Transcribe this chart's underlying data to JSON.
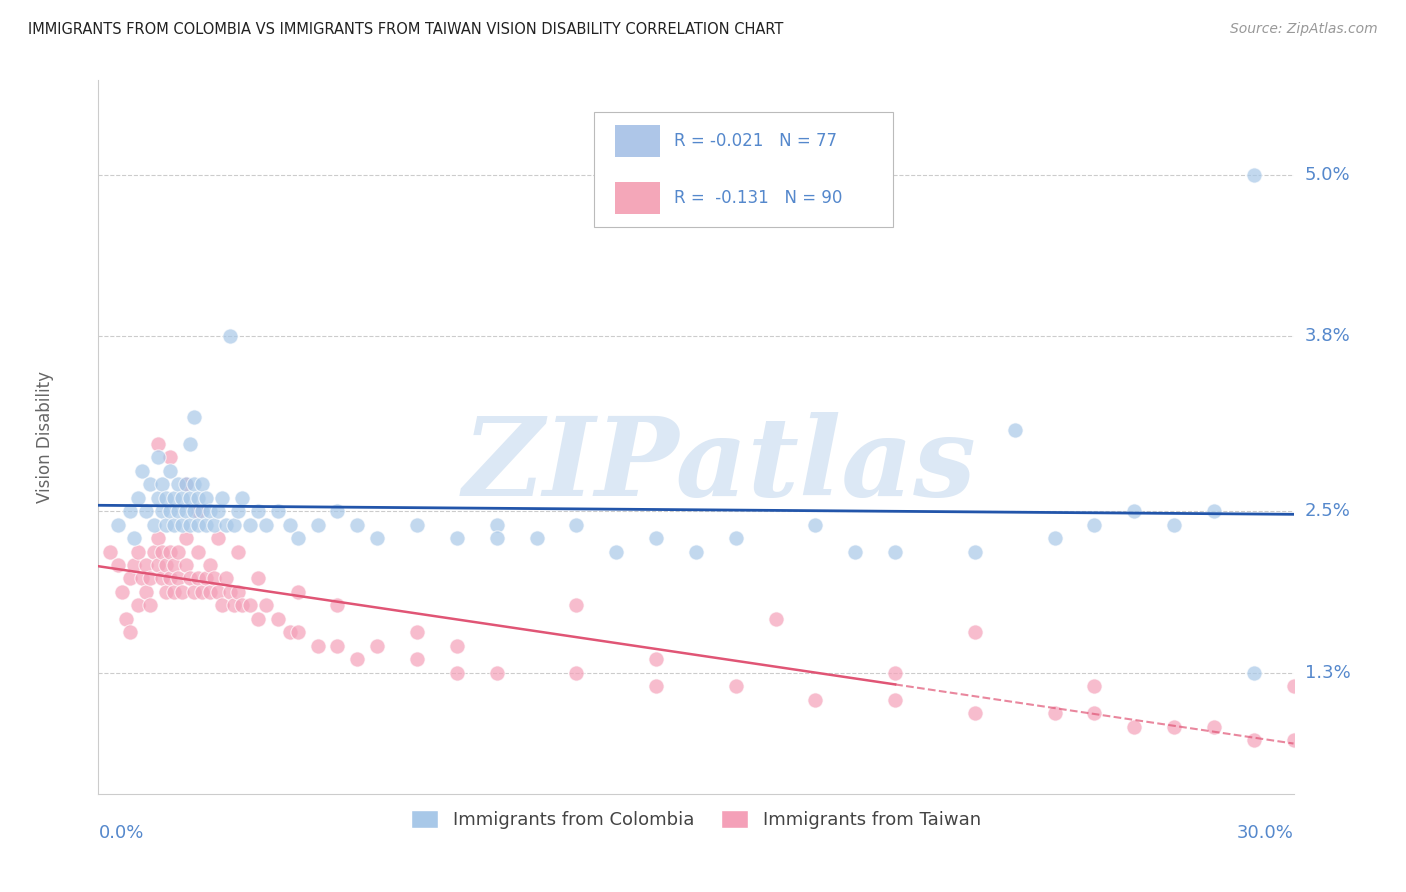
{
  "title": "IMMIGRANTS FROM COLOMBIA VS IMMIGRANTS FROM TAIWAN VISION DISABILITY CORRELATION CHART",
  "source": "Source: ZipAtlas.com",
  "xlabel_ticks": [
    "0.0%",
    "30.0%"
  ],
  "ylabel_ticks_labels": [
    "1.3%",
    "2.5%",
    "3.8%",
    "5.0%"
  ],
  "ylabel_ticks_values": [
    0.013,
    0.025,
    0.038,
    0.05
  ],
  "ylabel": "Vision Disability",
  "legend_entries": [
    {
      "label": "Immigrants from Colombia",
      "color": "#aec6e8",
      "R": "-0.021",
      "N": "77"
    },
    {
      "label": "Immigrants from Taiwan",
      "color": "#f4a7b9",
      "R": "-0.131",
      "N": "90"
    }
  ],
  "colombia_color": "#a8c8e8",
  "taiwan_color": "#f4a0b8",
  "colombia_line_color": "#2255aa",
  "taiwan_line_color": "#e05575",
  "watermark": "ZIPatlas",
  "xmin": 0.0,
  "xmax": 0.3,
  "ymin": 0.004,
  "ymax": 0.057,
  "colombia_scatter_x": [
    0.005,
    0.008,
    0.009,
    0.01,
    0.011,
    0.012,
    0.013,
    0.014,
    0.015,
    0.015,
    0.016,
    0.016,
    0.017,
    0.017,
    0.018,
    0.018,
    0.019,
    0.019,
    0.02,
    0.02,
    0.021,
    0.021,
    0.022,
    0.022,
    0.023,
    0.023,
    0.023,
    0.024,
    0.024,
    0.024,
    0.025,
    0.025,
    0.026,
    0.026,
    0.027,
    0.027,
    0.028,
    0.029,
    0.03,
    0.031,
    0.032,
    0.033,
    0.034,
    0.035,
    0.036,
    0.038,
    0.04,
    0.042,
    0.045,
    0.048,
    0.05,
    0.055,
    0.06,
    0.065,
    0.07,
    0.08,
    0.09,
    0.1,
    0.11,
    0.12,
    0.14,
    0.16,
    0.18,
    0.2,
    0.22,
    0.24,
    0.25,
    0.26,
    0.27,
    0.28,
    0.29,
    0.29,
    0.23,
    0.19,
    0.15,
    0.13,
    0.1
  ],
  "colombia_scatter_y": [
    0.024,
    0.025,
    0.023,
    0.026,
    0.028,
    0.025,
    0.027,
    0.024,
    0.026,
    0.029,
    0.025,
    0.027,
    0.024,
    0.026,
    0.025,
    0.028,
    0.024,
    0.026,
    0.025,
    0.027,
    0.024,
    0.026,
    0.025,
    0.027,
    0.024,
    0.026,
    0.03,
    0.025,
    0.027,
    0.032,
    0.024,
    0.026,
    0.025,
    0.027,
    0.024,
    0.026,
    0.025,
    0.024,
    0.025,
    0.026,
    0.024,
    0.038,
    0.024,
    0.025,
    0.026,
    0.024,
    0.025,
    0.024,
    0.025,
    0.024,
    0.023,
    0.024,
    0.025,
    0.024,
    0.023,
    0.024,
    0.023,
    0.024,
    0.023,
    0.024,
    0.023,
    0.023,
    0.024,
    0.022,
    0.022,
    0.023,
    0.024,
    0.025,
    0.024,
    0.025,
    0.013,
    0.05,
    0.031,
    0.022,
    0.022,
    0.022,
    0.023
  ],
  "taiwan_scatter_x": [
    0.003,
    0.005,
    0.006,
    0.007,
    0.008,
    0.008,
    0.009,
    0.01,
    0.01,
    0.011,
    0.012,
    0.012,
    0.013,
    0.013,
    0.014,
    0.015,
    0.015,
    0.016,
    0.016,
    0.017,
    0.017,
    0.018,
    0.018,
    0.019,
    0.019,
    0.02,
    0.02,
    0.021,
    0.022,
    0.022,
    0.023,
    0.024,
    0.025,
    0.025,
    0.026,
    0.027,
    0.028,
    0.028,
    0.029,
    0.03,
    0.031,
    0.032,
    0.033,
    0.034,
    0.035,
    0.036,
    0.038,
    0.04,
    0.042,
    0.045,
    0.048,
    0.05,
    0.055,
    0.06,
    0.065,
    0.07,
    0.08,
    0.09,
    0.1,
    0.12,
    0.14,
    0.16,
    0.18,
    0.2,
    0.22,
    0.24,
    0.25,
    0.26,
    0.27,
    0.28,
    0.29,
    0.3,
    0.015,
    0.018,
    0.022,
    0.025,
    0.03,
    0.035,
    0.04,
    0.05,
    0.06,
    0.09,
    0.14,
    0.2,
    0.25,
    0.3,
    0.22,
    0.17,
    0.12,
    0.08
  ],
  "taiwan_scatter_y": [
    0.022,
    0.021,
    0.019,
    0.017,
    0.016,
    0.02,
    0.021,
    0.022,
    0.018,
    0.02,
    0.019,
    0.021,
    0.018,
    0.02,
    0.022,
    0.021,
    0.023,
    0.02,
    0.022,
    0.019,
    0.021,
    0.02,
    0.022,
    0.019,
    0.021,
    0.02,
    0.022,
    0.019,
    0.021,
    0.023,
    0.02,
    0.019,
    0.02,
    0.022,
    0.019,
    0.02,
    0.019,
    0.021,
    0.02,
    0.019,
    0.018,
    0.02,
    0.019,
    0.018,
    0.019,
    0.018,
    0.018,
    0.017,
    0.018,
    0.017,
    0.016,
    0.016,
    0.015,
    0.015,
    0.014,
    0.015,
    0.014,
    0.013,
    0.013,
    0.013,
    0.012,
    0.012,
    0.011,
    0.011,
    0.01,
    0.01,
    0.01,
    0.009,
    0.009,
    0.009,
    0.008,
    0.008,
    0.03,
    0.029,
    0.027,
    0.025,
    0.023,
    0.022,
    0.02,
    0.019,
    0.018,
    0.015,
    0.014,
    0.013,
    0.012,
    0.012,
    0.016,
    0.017,
    0.018,
    0.016
  ],
  "background_color": "#ffffff",
  "grid_color": "#cccccc",
  "title_color": "#222222",
  "source_color": "#999999",
  "tick_label_color": "#5588cc",
  "watermark_color": "#dce8f5"
}
